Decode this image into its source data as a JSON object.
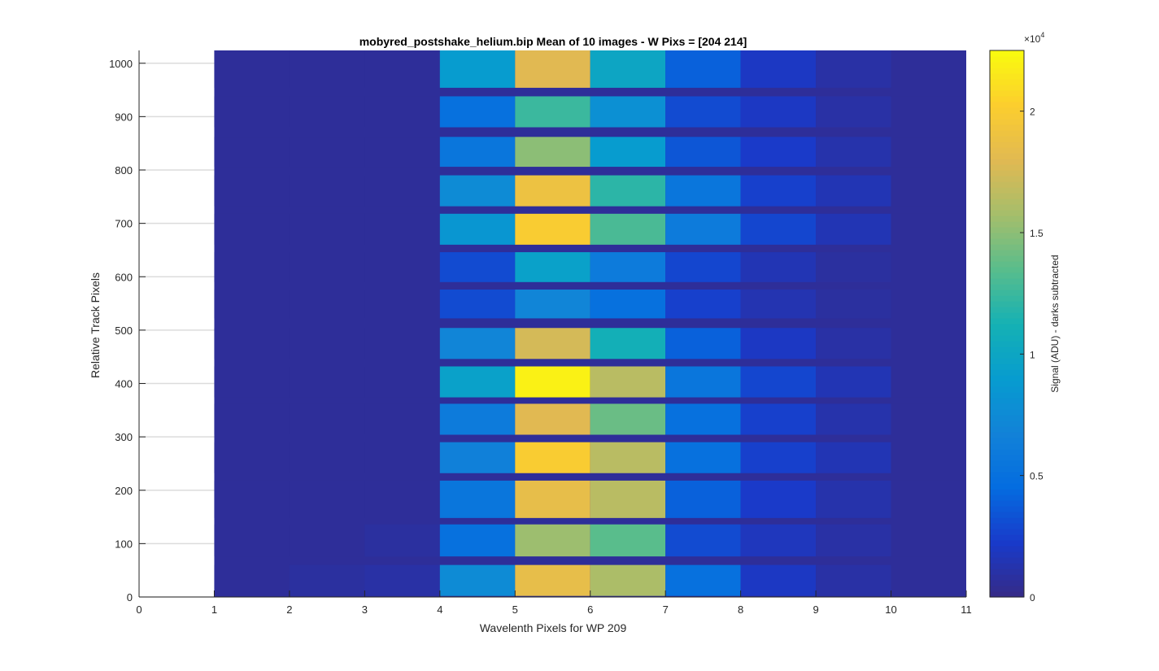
{
  "chart_data": {
    "type": "heatmap",
    "title": "mobyred_postshake_helium.bip  Mean of 10 images - W Pixs = [204  214]",
    "xlabel": "Wavelenth Pixels for WP 209",
    "ylabel": "Relative Track Pixels",
    "xlim": [
      0,
      11
    ],
    "ylim": [
      0,
      1024
    ],
    "xticks": [
      "0",
      "1",
      "2",
      "3",
      "4",
      "5",
      "6",
      "7",
      "8",
      "9",
      "10",
      "11"
    ],
    "yticks": [
      "0",
      "100",
      "200",
      "300",
      "400",
      "500",
      "600",
      "700",
      "800",
      "900",
      "1000"
    ],
    "grid": "y-gridlines",
    "columns": [
      1,
      2,
      3,
      4,
      5,
      6,
      7,
      8,
      9,
      10
    ],
    "colorbar": {
      "label": "Signal (ADU) - darks subtracted",
      "exponent_label": "×10",
      "exponent": "4",
      "ticks": [
        "0",
        "0.5",
        "1",
        "1.5",
        "2"
      ],
      "range": [
        0,
        2.25
      ],
      "colormap": "parula"
    },
    "background_value": 0.06,
    "bands": [
      {
        "y_range": [
          2,
          60
        ],
        "values": [
          0.06,
          0.08,
          0.1,
          0.75,
          1.85,
          1.6,
          0.5,
          0.2,
          0.1,
          0.06
        ]
      },
      {
        "y_range": [
          76,
          136
        ],
        "values": [
          0.06,
          0.06,
          0.08,
          0.5,
          1.55,
          1.35,
          0.3,
          0.18,
          0.1,
          0.06
        ]
      },
      {
        "y_range": [
          148,
          218
        ],
        "values": [
          0.06,
          0.06,
          0.06,
          0.55,
          1.85,
          1.65,
          0.4,
          0.22,
          0.12,
          0.06
        ]
      },
      {
        "y_range": [
          232,
          290
        ],
        "values": [
          0.06,
          0.06,
          0.06,
          0.65,
          2.0,
          1.65,
          0.5,
          0.25,
          0.15,
          0.06
        ]
      },
      {
        "y_range": [
          304,
          362
        ],
        "values": [
          0.06,
          0.06,
          0.06,
          0.6,
          1.8,
          1.4,
          0.5,
          0.25,
          0.12,
          0.06
        ]
      },
      {
        "y_range": [
          374,
          432
        ],
        "values": [
          0.06,
          0.06,
          0.06,
          0.95,
          2.2,
          1.65,
          0.55,
          0.28,
          0.15,
          0.06
        ]
      },
      {
        "y_range": [
          446,
          504
        ],
        "values": [
          0.06,
          0.06,
          0.06,
          0.7,
          1.75,
          1.1,
          0.4,
          0.2,
          0.1,
          0.06
        ]
      },
      {
        "y_range": [
          522,
          576
        ],
        "values": [
          0.06,
          0.06,
          0.06,
          0.3,
          0.7,
          0.5,
          0.25,
          0.14,
          0.08,
          0.06
        ]
      },
      {
        "y_range": [
          590,
          646
        ],
        "values": [
          0.06,
          0.06,
          0.06,
          0.3,
          0.95,
          0.6,
          0.28,
          0.15,
          0.08,
          0.06
        ]
      },
      {
        "y_range": [
          660,
          718
        ],
        "values": [
          0.06,
          0.06,
          0.06,
          0.85,
          2.0,
          1.3,
          0.6,
          0.28,
          0.15,
          0.06
        ]
      },
      {
        "y_range": [
          732,
          790
        ],
        "values": [
          0.06,
          0.06,
          0.06,
          0.75,
          1.9,
          1.2,
          0.55,
          0.25,
          0.15,
          0.06
        ]
      },
      {
        "y_range": [
          806,
          862
        ],
        "values": [
          0.06,
          0.06,
          0.06,
          0.55,
          1.5,
          0.9,
          0.35,
          0.22,
          0.12,
          0.06
        ]
      },
      {
        "y_range": [
          880,
          938
        ],
        "values": [
          0.06,
          0.06,
          0.06,
          0.5,
          1.25,
          0.8,
          0.3,
          0.2,
          0.1,
          0.06
        ]
      },
      {
        "y_range": [
          954,
          1024
        ],
        "values": [
          0.06,
          0.06,
          0.06,
          0.9,
          1.8,
          1.0,
          0.4,
          0.2,
          0.1,
          0.06
        ]
      }
    ]
  }
}
